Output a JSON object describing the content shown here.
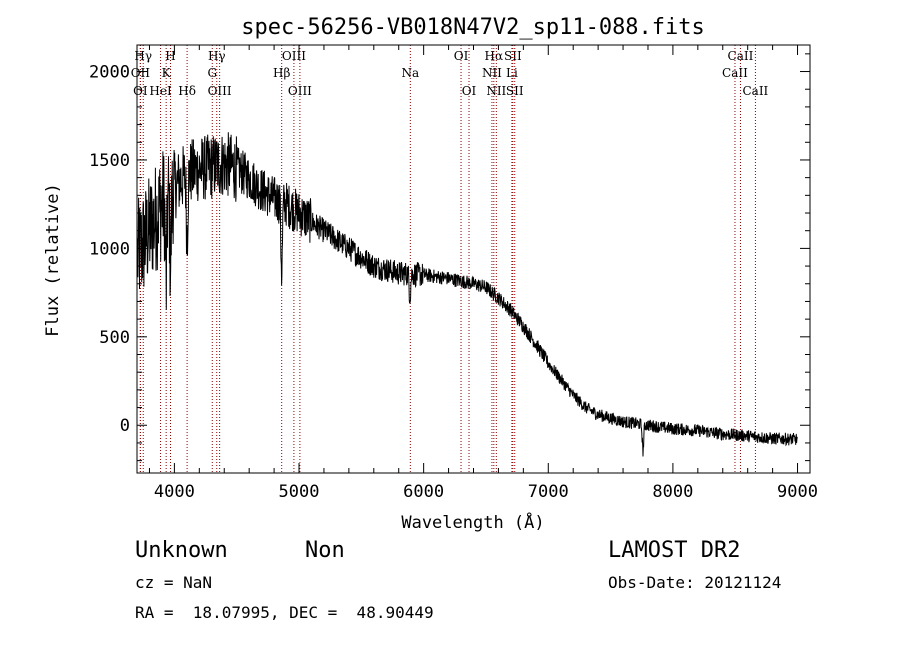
{
  "chart_data": {
    "type": "line",
    "title": "spec-56256-VB018N47V2_sp11-088.fits",
    "xlabel": "Wavelength (Å)",
    "ylabel": "Flux (relative)",
    "xlim": [
      3700,
      9100
    ],
    "ylim": [
      -270,
      2150
    ],
    "x_ticks": [
      4000,
      5000,
      6000,
      7000,
      8000,
      9000
    ],
    "y_ticks": [
      0,
      500,
      1000,
      1500,
      2000
    ],
    "x_tick_labels": [
      "4000",
      "5000",
      "6000",
      "7000",
      "8000",
      "9000"
    ],
    "y_tick_labels": [
      "0",
      "500",
      "1000",
      "1500",
      "2000"
    ],
    "grid": false,
    "line_color": "#000000",
    "marker_line_color": "#8b0000",
    "continuum": {
      "x": [
        3700,
        3800,
        3900,
        4000,
        4100,
        4200,
        4300,
        4400,
        4500,
        4600,
        4700,
        4800,
        4900,
        5000,
        5200,
        5400,
        5600,
        5800,
        6000,
        6200,
        6400,
        6500,
        6600,
        6700,
        6800,
        6900,
        7000,
        7100,
        7200,
        7300,
        7400,
        7600,
        7800,
        8000,
        8200,
        8400,
        8600,
        8800,
        9000
      ],
      "y": [
        950,
        1100,
        1250,
        1350,
        1420,
        1450,
        1460,
        1480,
        1450,
        1400,
        1330,
        1280,
        1250,
        1200,
        1100,
        1000,
        900,
        860,
        850,
        830,
        800,
        780,
        720,
        650,
        560,
        460,
        350,
        260,
        170,
        100,
        60,
        20,
        0,
        -20,
        -30,
        -50,
        -60,
        -75,
        -80
      ]
    },
    "absorption_features": [
      {
        "x": 3934,
        "depth": 500
      },
      {
        "x": 3969,
        "depth": 400
      },
      {
        "x": 4102,
        "depth": 350
      },
      {
        "x": 4861,
        "depth": 400
      },
      {
        "x": 5890,
        "depth": 120
      },
      {
        "x": 7760,
        "depth": 150
      }
    ],
    "line_markers": [
      {
        "label": "Hγ",
        "x": 3750,
        "row": 1
      },
      {
        "label": "H",
        "x": 3969,
        "row": 1
      },
      {
        "label": "OII",
        "x": 3727,
        "row": 2
      },
      {
        "label": "K",
        "x": 3934,
        "row": 2
      },
      {
        "label": "OI",
        "x": 3727,
        "row": 3
      },
      {
        "label": "HeI",
        "x": 3889,
        "row": 3
      },
      {
        "label": "Hδ",
        "x": 4102,
        "row": 3
      },
      {
        "label": "Hγ",
        "x": 4340,
        "row": 1
      },
      {
        "label": "G",
        "x": 4304,
        "row": 2
      },
      {
        "label": "OIII",
        "x": 4363,
        "row": 3
      },
      {
        "label": "OIII",
        "x": 4959,
        "row": 1
      },
      {
        "label": "Hβ",
        "x": 4861,
        "row": 2
      },
      {
        "label": "OIII",
        "x": 5007,
        "row": 3
      },
      {
        "label": "Na",
        "x": 5893,
        "row": 2
      },
      {
        "label": "OI",
        "x": 6300,
        "row": 1
      },
      {
        "label": "OI",
        "x": 6364,
        "row": 3
      },
      {
        "label": "Hα",
        "x": 6563,
        "row": 1
      },
      {
        "label": "SII",
        "x": 6716,
        "row": 1
      },
      {
        "label": "NII",
        "x": 6548,
        "row": 2
      },
      {
        "label": "Li",
        "x": 6708,
        "row": 2
      },
      {
        "label": "NII",
        "x": 6583,
        "row": 3
      },
      {
        "label": "SII",
        "x": 6731,
        "row": 3
      },
      {
        "label": "CaII",
        "x": 8542,
        "row": 1
      },
      {
        "label": "CaII",
        "x": 8498,
        "row": 2
      },
      {
        "label": "CaII",
        "x": 8662,
        "row": 3
      }
    ]
  },
  "info": {
    "object_type": "Unknown",
    "subclass": "Non",
    "survey": "LAMOST DR2",
    "cz": "cz = NaN",
    "obs_date": "Obs-Date: 20121124",
    "coords": "RA =  18.07995, DEC =  48.90449"
  }
}
